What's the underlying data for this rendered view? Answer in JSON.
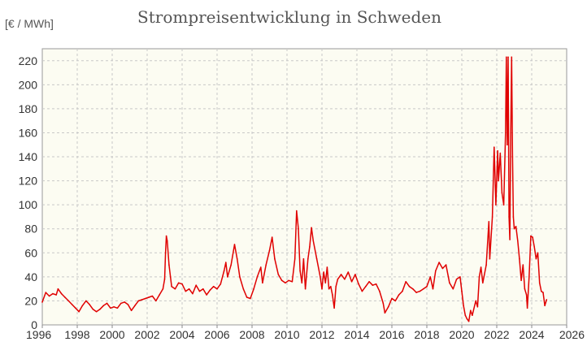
{
  "chart_data": {
    "type": "line",
    "title": "Strompreisentwicklung in Schweden",
    "ylabel": "[€ / MWh]",
    "xlabel": "",
    "xlim": [
      1996,
      2026
    ],
    "ylim": [
      0,
      230
    ],
    "x_ticks": [
      1996,
      1998,
      2000,
      2002,
      2004,
      2006,
      2008,
      2010,
      2012,
      2014,
      2016,
      2018,
      2020,
      2022,
      2024,
      2026
    ],
    "y_ticks": [
      0,
      20,
      40,
      60,
      80,
      100,
      120,
      140,
      160,
      180,
      200,
      220
    ],
    "grid": true,
    "series_color": "#e00000",
    "series": [
      {
        "points": [
          [
            1996.0,
            19
          ],
          [
            1996.2,
            27
          ],
          [
            1996.4,
            24
          ],
          [
            1996.6,
            26
          ],
          [
            1996.8,
            25
          ],
          [
            1996.9,
            30
          ],
          [
            1997.1,
            26
          ],
          [
            1997.3,
            23
          ],
          [
            1997.5,
            20
          ],
          [
            1997.7,
            17
          ],
          [
            1997.9,
            14
          ],
          [
            1998.1,
            11
          ],
          [
            1998.3,
            16
          ],
          [
            1998.5,
            20
          ],
          [
            1998.7,
            17
          ],
          [
            1998.9,
            13
          ],
          [
            1999.1,
            11
          ],
          [
            1999.3,
            13
          ],
          [
            1999.5,
            16
          ],
          [
            1999.7,
            18
          ],
          [
            1999.9,
            14
          ],
          [
            2000.1,
            15
          ],
          [
            2000.3,
            14
          ],
          [
            2000.5,
            18
          ],
          [
            2000.7,
            19
          ],
          [
            2000.9,
            17
          ],
          [
            2001.1,
            12
          ],
          [
            2001.3,
            16
          ],
          [
            2001.5,
            20
          ],
          [
            2001.7,
            21
          ],
          [
            2001.9,
            22
          ],
          [
            2002.1,
            23
          ],
          [
            2002.3,
            24
          ],
          [
            2002.5,
            20
          ],
          [
            2002.7,
            25
          ],
          [
            2002.9,
            30
          ],
          [
            2003.0,
            38
          ],
          [
            2003.05,
            60
          ],
          [
            2003.1,
            74
          ],
          [
            2003.15,
            70
          ],
          [
            2003.25,
            50
          ],
          [
            2003.4,
            32
          ],
          [
            2003.6,
            30
          ],
          [
            2003.8,
            35
          ],
          [
            2004.0,
            34
          ],
          [
            2004.2,
            28
          ],
          [
            2004.4,
            30
          ],
          [
            2004.6,
            26
          ],
          [
            2004.8,
            33
          ],
          [
            2005.0,
            28
          ],
          [
            2005.2,
            30
          ],
          [
            2005.4,
            25
          ],
          [
            2005.6,
            29
          ],
          [
            2005.8,
            32
          ],
          [
            2006.0,
            30
          ],
          [
            2006.2,
            34
          ],
          [
            2006.4,
            45
          ],
          [
            2006.5,
            52
          ],
          [
            2006.6,
            40
          ],
          [
            2006.8,
            50
          ],
          [
            2007.0,
            67
          ],
          [
            2007.15,
            55
          ],
          [
            2007.3,
            40
          ],
          [
            2007.5,
            30
          ],
          [
            2007.7,
            23
          ],
          [
            2007.9,
            22
          ],
          [
            2008.1,
            30
          ],
          [
            2008.3,
            40
          ],
          [
            2008.5,
            48
          ],
          [
            2008.6,
            35
          ],
          [
            2008.8,
            50
          ],
          [
            2009.0,
            62
          ],
          [
            2009.15,
            73
          ],
          [
            2009.3,
            55
          ],
          [
            2009.5,
            42
          ],
          [
            2009.7,
            37
          ],
          [
            2009.9,
            35
          ],
          [
            2010.1,
            37
          ],
          [
            2010.3,
            36
          ],
          [
            2010.45,
            55
          ],
          [
            2010.55,
            95
          ],
          [
            2010.65,
            80
          ],
          [
            2010.75,
            45
          ],
          [
            2010.85,
            35
          ],
          [
            2010.95,
            55
          ],
          [
            2011.05,
            30
          ],
          [
            2011.2,
            55
          ],
          [
            2011.3,
            65
          ],
          [
            2011.4,
            81
          ],
          [
            2011.5,
            70
          ],
          [
            2011.7,
            55
          ],
          [
            2011.9,
            40
          ],
          [
            2012.0,
            30
          ],
          [
            2012.1,
            44
          ],
          [
            2012.2,
            35
          ],
          [
            2012.3,
            48
          ],
          [
            2012.4,
            30
          ],
          [
            2012.5,
            32
          ],
          [
            2012.6,
            25
          ],
          [
            2012.7,
            14
          ],
          [
            2012.8,
            32
          ],
          [
            2012.9,
            38
          ],
          [
            2013.1,
            42
          ],
          [
            2013.3,
            38
          ],
          [
            2013.5,
            44
          ],
          [
            2013.7,
            36
          ],
          [
            2013.9,
            42
          ],
          [
            2014.1,
            34
          ],
          [
            2014.3,
            28
          ],
          [
            2014.5,
            32
          ],
          [
            2014.7,
            36
          ],
          [
            2014.9,
            33
          ],
          [
            2015.1,
            34
          ],
          [
            2015.3,
            28
          ],
          [
            2015.5,
            18
          ],
          [
            2015.6,
            10
          ],
          [
            2015.8,
            15
          ],
          [
            2016.0,
            22
          ],
          [
            2016.2,
            20
          ],
          [
            2016.4,
            25
          ],
          [
            2016.6,
            28
          ],
          [
            2016.8,
            36
          ],
          [
            2017.0,
            32
          ],
          [
            2017.2,
            30
          ],
          [
            2017.4,
            27
          ],
          [
            2017.6,
            28
          ],
          [
            2017.8,
            30
          ],
          [
            2018.0,
            32
          ],
          [
            2018.2,
            40
          ],
          [
            2018.35,
            30
          ],
          [
            2018.5,
            45
          ],
          [
            2018.7,
            52
          ],
          [
            2018.9,
            47
          ],
          [
            2019.1,
            50
          ],
          [
            2019.3,
            35
          ],
          [
            2019.5,
            30
          ],
          [
            2019.7,
            38
          ],
          [
            2019.9,
            40
          ],
          [
            2020.0,
            28
          ],
          [
            2020.1,
            16
          ],
          [
            2020.2,
            8
          ],
          [
            2020.3,
            5
          ],
          [
            2020.4,
            3
          ],
          [
            2020.5,
            12
          ],
          [
            2020.6,
            8
          ],
          [
            2020.8,
            20
          ],
          [
            2020.9,
            15
          ],
          [
            2021.0,
            40
          ],
          [
            2021.1,
            48
          ],
          [
            2021.2,
            35
          ],
          [
            2021.4,
            50
          ],
          [
            2021.55,
            86
          ],
          [
            2021.6,
            55
          ],
          [
            2021.75,
            90
          ],
          [
            2021.85,
            148
          ],
          [
            2021.95,
            100
          ],
          [
            2022.05,
            145
          ],
          [
            2022.1,
            120
          ],
          [
            2022.2,
            143
          ],
          [
            2022.3,
            110
          ],
          [
            2022.4,
            100
          ],
          [
            2022.5,
            160
          ],
          [
            2022.55,
            223
          ],
          [
            2022.6,
            150
          ],
          [
            2022.65,
            223
          ],
          [
            2022.7,
            90
          ],
          [
            2022.75,
            71
          ],
          [
            2022.8,
            160
          ],
          [
            2022.85,
            223
          ],
          [
            2022.9,
            140
          ],
          [
            2022.95,
            90
          ],
          [
            2023.0,
            80
          ],
          [
            2023.1,
            82
          ],
          [
            2023.2,
            70
          ],
          [
            2023.3,
            55
          ],
          [
            2023.4,
            37
          ],
          [
            2023.5,
            50
          ],
          [
            2023.6,
            30
          ],
          [
            2023.7,
            25
          ],
          [
            2023.75,
            14
          ],
          [
            2023.85,
            40
          ],
          [
            2023.95,
            74
          ],
          [
            2024.05,
            73
          ],
          [
            2024.15,
            65
          ],
          [
            2024.25,
            55
          ],
          [
            2024.35,
            60
          ],
          [
            2024.45,
            35
          ],
          [
            2024.55,
            28
          ],
          [
            2024.65,
            27
          ],
          [
            2024.75,
            16
          ],
          [
            2024.85,
            21
          ]
        ]
      }
    ]
  }
}
